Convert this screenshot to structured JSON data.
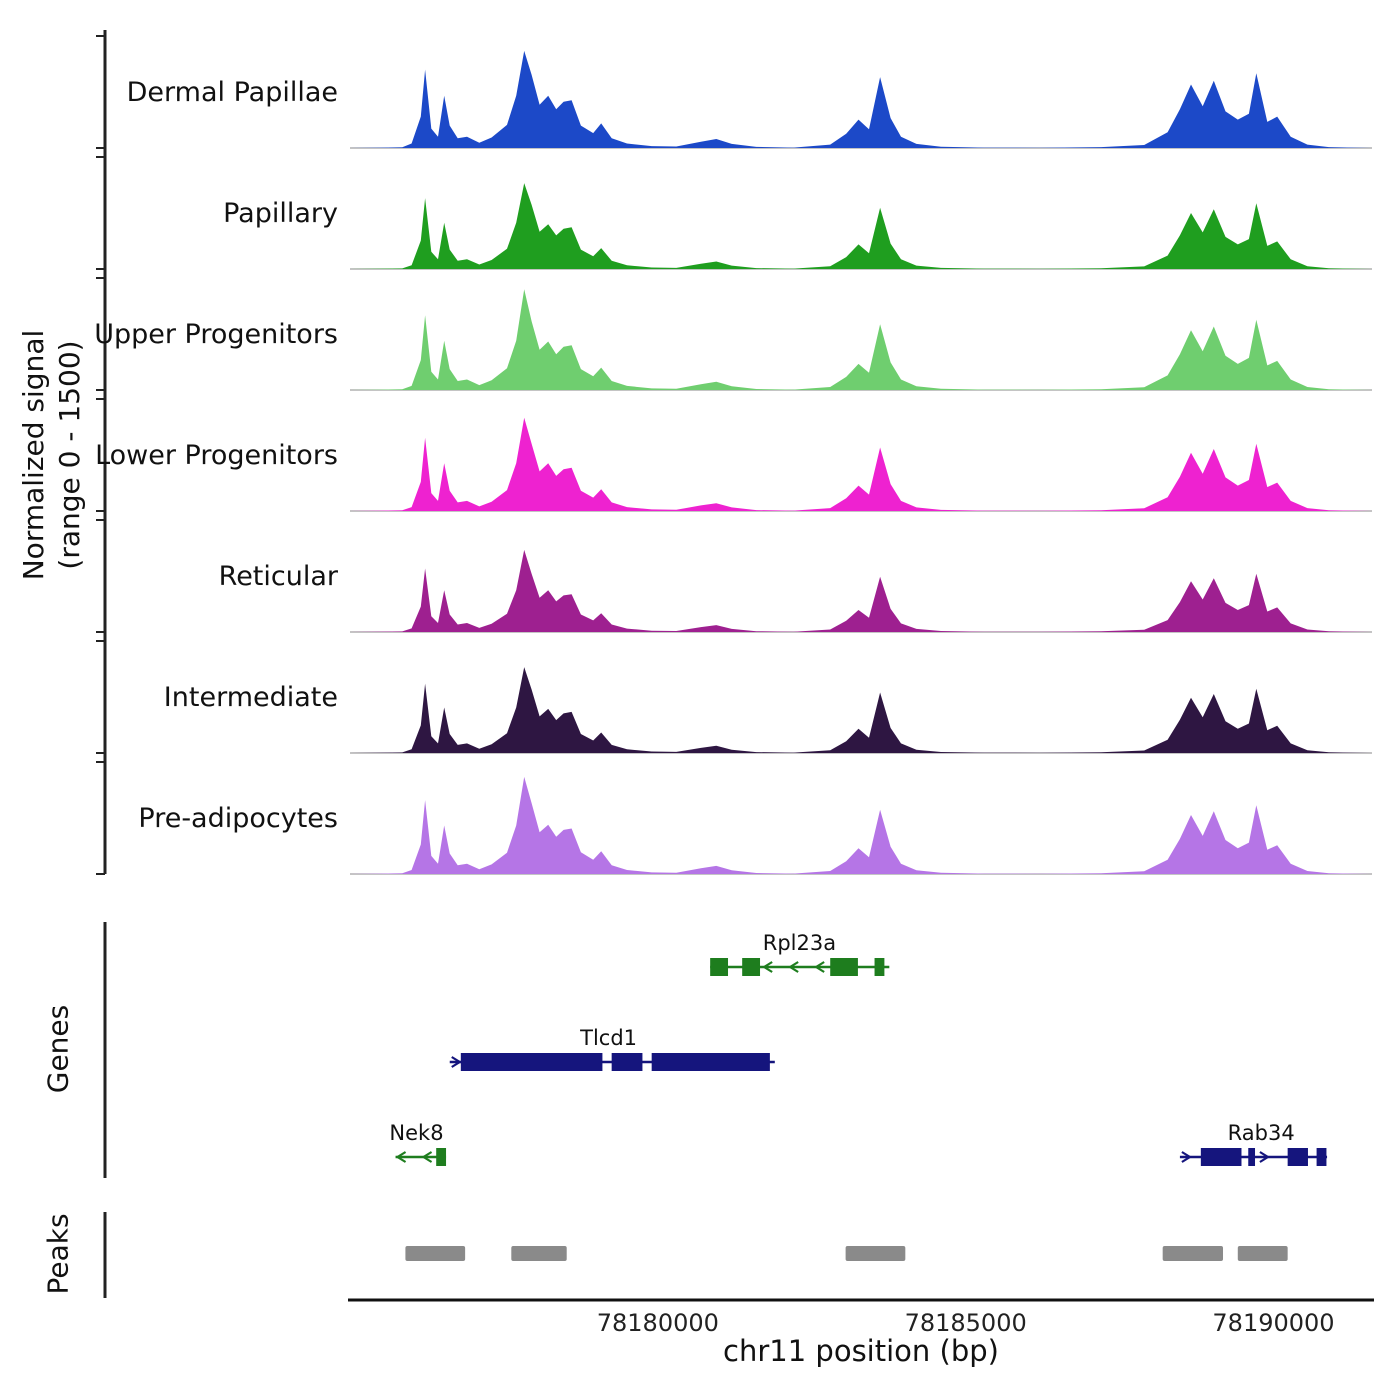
{
  "y_axis": {
    "label_line1": "Normalized signal",
    "label_line2": "(range 0 - 1500)",
    "range": [
      0,
      1500
    ]
  },
  "sections": {
    "genes_label": "Genes",
    "peaks_label": "Peaks"
  },
  "x_axis": {
    "title": "chr11 position (bp)",
    "range_bp": [
      78175000,
      78191600
    ],
    "ticks": [
      {
        "pos": 78180000,
        "label": "78180000"
      },
      {
        "pos": 78185000,
        "label": "78185000"
      },
      {
        "pos": 78190000,
        "label": "78190000"
      }
    ]
  },
  "chart_data": {
    "type": "area",
    "title": "",
    "xlabel": "chr11 position (bp)",
    "ylabel": "Normalized signal (range 0 - 1500)",
    "ylim": [
      0,
      1500
    ],
    "grid": false,
    "x_bp": [
      78175000,
      78175850,
      78176000,
      78176150,
      78176220,
      78176320,
      78176430,
      78176530,
      78176620,
      78176750,
      78176900,
      78177100,
      78177300,
      78177550,
      78177700,
      78177830,
      78177950,
      78178080,
      78178220,
      78178350,
      78178470,
      78178600,
      78178750,
      78178950,
      78179080,
      78179250,
      78179500,
      78179900,
      78180300,
      78180700,
      78180950,
      78181200,
      78181600,
      78182200,
      78182800,
      78183060,
      78183260,
      78183430,
      78183610,
      78183780,
      78183950,
      78184200,
      78184600,
      78185300,
      78186200,
      78187200,
      78187900,
      78188280,
      78188480,
      78188660,
      78188850,
      78189030,
      78189220,
      78189420,
      78189600,
      78189720,
      78189900,
      78190060,
      78190280,
      78190550,
      78190900,
      78191600
    ],
    "series": [
      {
        "name": "Dermal Papillae",
        "color": "#1c49c8",
        "values": [
          0,
          10,
          60,
          420,
          1050,
          260,
          150,
          700,
          300,
          130,
          150,
          70,
          140,
          310,
          700,
          1300,
          980,
          580,
          700,
          520,
          620,
          640,
          300,
          200,
          330,
          130,
          60,
          25,
          20,
          85,
          120,
          55,
          15,
          6,
          45,
          190,
          380,
          250,
          950,
          400,
          150,
          55,
          18,
          6,
          4,
          12,
          40,
          210,
          520,
          850,
          560,
          900,
          490,
          380,
          460,
          1000,
          350,
          420,
          150,
          45,
          12,
          0
        ]
      },
      {
        "name": "Papillary",
        "color": "#1f9e1f",
        "values": [
          0,
          8,
          50,
          380,
          950,
          230,
          130,
          620,
          260,
          110,
          130,
          60,
          120,
          270,
          620,
          1150,
          860,
          500,
          600,
          450,
          540,
          560,
          260,
          170,
          280,
          110,
          50,
          20,
          15,
          70,
          100,
          45,
          12,
          5,
          38,
          160,
          330,
          210,
          820,
          340,
          130,
          45,
          15,
          5,
          4,
          10,
          35,
          180,
          450,
          750,
          490,
          800,
          430,
          330,
          400,
          880,
          310,
          370,
          130,
          38,
          10,
          0
        ]
      },
      {
        "name": "Upper Progenitors",
        "color": "#6fce6f",
        "values": [
          0,
          9,
          55,
          400,
          1000,
          245,
          140,
          660,
          280,
          120,
          140,
          65,
          130,
          290,
          660,
          1350,
          920,
          540,
          650,
          480,
          580,
          600,
          280,
          185,
          300,
          120,
          55,
          22,
          17,
          78,
          110,
          50,
          13,
          5,
          40,
          175,
          350,
          230,
          880,
          370,
          140,
          50,
          16,
          5,
          4,
          11,
          38,
          195,
          480,
          800,
          520,
          850,
          460,
          350,
          430,
          940,
          330,
          390,
          140,
          40,
          11,
          0
        ]
      },
      {
        "name": "Lower Progenitors",
        "color": "#ee22d0",
        "values": [
          0,
          9,
          52,
          390,
          980,
          240,
          135,
          640,
          270,
          115,
          135,
          62,
          125,
          280,
          640,
          1250,
          900,
          530,
          640,
          470,
          560,
          580,
          270,
          180,
          290,
          115,
          52,
          21,
          16,
          75,
          105,
          48,
          12,
          5,
          39,
          170,
          340,
          220,
          850,
          360,
          135,
          48,
          15,
          5,
          4,
          10,
          36,
          185,
          460,
          780,
          500,
          830,
          450,
          340,
          415,
          900,
          320,
          380,
          135,
          39,
          10,
          0
        ]
      },
      {
        "name": "Reticular",
        "color": "#9e2090",
        "values": [
          0,
          8,
          48,
          340,
          850,
          210,
          120,
          560,
          235,
          100,
          120,
          55,
          110,
          245,
          560,
          1100,
          780,
          460,
          560,
          410,
          490,
          505,
          235,
          155,
          250,
          100,
          45,
          18,
          14,
          65,
          92,
          42,
          11,
          4,
          34,
          150,
          295,
          190,
          740,
          310,
          115,
          42,
          13,
          4,
          3,
          9,
          31,
          160,
          400,
          680,
          435,
          720,
          390,
          295,
          360,
          780,
          275,
          330,
          115,
          34,
          9,
          0
        ]
      },
      {
        "name": "Intermediate",
        "color": "#2e1642",
        "values": [
          0,
          8,
          50,
          370,
          930,
          225,
          128,
          610,
          255,
          108,
          128,
          58,
          118,
          265,
          610,
          1150,
          850,
          490,
          590,
          440,
          530,
          550,
          255,
          168,
          275,
          108,
          49,
          20,
          15,
          68,
          98,
          44,
          12,
          5,
          37,
          158,
          325,
          205,
          810,
          335,
          128,
          44,
          14,
          5,
          4,
          10,
          34,
          178,
          445,
          740,
          480,
          790,
          425,
          325,
          395,
          860,
          305,
          365,
          128,
          37,
          10,
          0
        ]
      },
      {
        "name": "Pre-adipocytes",
        "color": "#b575e6",
        "values": [
          0,
          9,
          54,
          395,
          990,
          242,
          138,
          650,
          275,
          118,
          138,
          64,
          128,
          285,
          650,
          1300,
          950,
          560,
          660,
          500,
          590,
          610,
          290,
          190,
          305,
          118,
          54,
          21,
          16,
          76,
          108,
          49,
          13,
          5,
          40,
          172,
          345,
          225,
          860,
          365,
          138,
          49,
          16,
          5,
          4,
          11,
          37,
          190,
          470,
          790,
          510,
          840,
          455,
          345,
          420,
          920,
          325,
          385,
          138,
          40,
          11,
          0
        ]
      }
    ],
    "genes": [
      {
        "name": "Rpl23a",
        "color": "#1e7d1e",
        "strand": "-",
        "row": 0,
        "start": 78180850,
        "end": 78183760,
        "label_x": 78182300,
        "exons": [
          [
            78180850,
            78181140
          ],
          [
            78181370,
            78181660
          ],
          [
            78182800,
            78183250
          ],
          [
            78183520,
            78183680
          ]
        ]
      },
      {
        "name": "Tlcd1",
        "color": "#15157d",
        "strand": "+",
        "row": 1,
        "start": 78176620,
        "end": 78181900,
        "label_x": 78179200,
        "exons": [
          [
            78176800,
            78179100
          ],
          [
            78179250,
            78179750
          ],
          [
            78179900,
            78181820
          ]
        ]
      },
      {
        "name": "Nek8",
        "color": "#1e7d1e",
        "strand": "-",
        "row": 2,
        "start": 78175740,
        "end": 78176560,
        "label_x": 78176080,
        "exons": [
          [
            78176400,
            78176560
          ]
        ]
      },
      {
        "name": "Rab34",
        "color": "#15157d",
        "strand": "+",
        "row": 2,
        "start": 78188480,
        "end": 78190870,
        "label_x": 78189800,
        "exons": [
          [
            78188820,
            78189480
          ],
          [
            78189590,
            78189700
          ],
          [
            78190230,
            78190560
          ],
          [
            78190700,
            78190860
          ]
        ]
      }
    ],
    "peaks_bp": [
      [
        78175900,
        78176870
      ],
      [
        78177620,
        78178520
      ],
      [
        78183050,
        78184020
      ],
      [
        78188200,
        78189180
      ],
      [
        78189420,
        78190230
      ]
    ],
    "peak_color": "#8a8a8a"
  }
}
